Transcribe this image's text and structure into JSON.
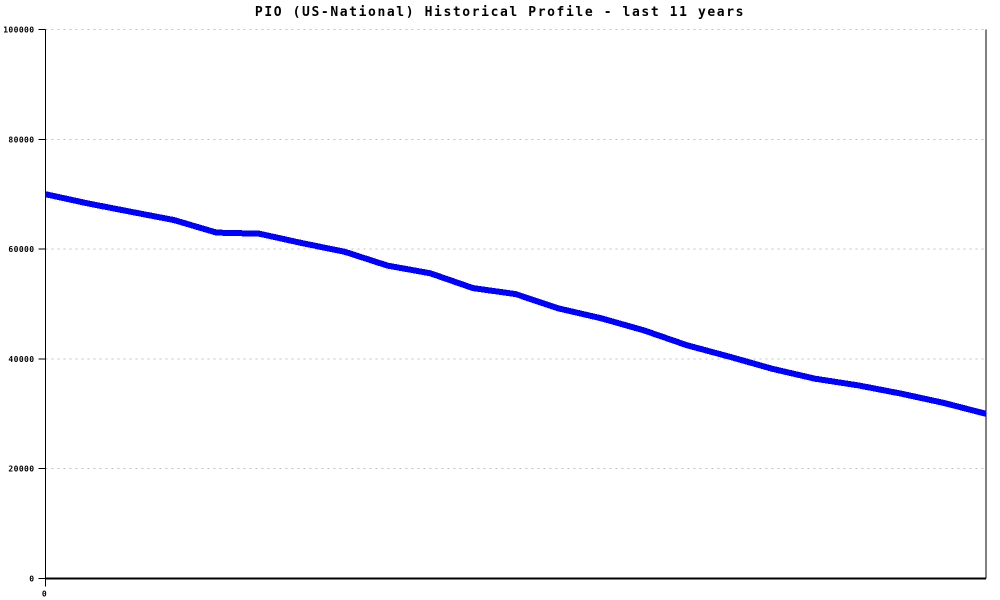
{
  "chart_data": {
    "type": "line",
    "title": "PIO (US-National) Historical Profile - last 11 years",
    "xlabel": "",
    "ylabel": "",
    "xlim": [
      0,
      11
    ],
    "ylim": [
      0,
      100000
    ],
    "yticks": [
      0,
      20000,
      40000,
      60000,
      80000,
      100000
    ],
    "ytick_labels": [
      "0",
      "20000",
      "40000",
      "60000",
      "80000",
      "100000"
    ],
    "xticks": [
      0
    ],
    "xtick_labels": [
      "0"
    ],
    "grid": "horizontal-dashed",
    "legend": "none",
    "series": [
      {
        "name": "PIO (US-National)",
        "x": [
          0,
          0.5,
          1,
          1.5,
          2,
          2.5,
          3,
          3.5,
          4,
          4.5,
          5,
          5.5,
          6,
          6.5,
          7,
          7.5,
          8,
          8.5,
          9,
          9.5,
          10,
          10.5,
          11
        ],
        "values": [
          70000,
          68300,
          66800,
          65300,
          63000,
          62800,
          61100,
          59500,
          57000,
          55600,
          52900,
          51800,
          49200,
          47400,
          45200,
          42500,
          40400,
          38200,
          36400,
          35200,
          33700,
          32000,
          30000
        ]
      }
    ],
    "line_color": "#0000ff",
    "grid_color": "#c0c0c0",
    "axis_color": "#000000",
    "background_color": "#ffffff"
  }
}
